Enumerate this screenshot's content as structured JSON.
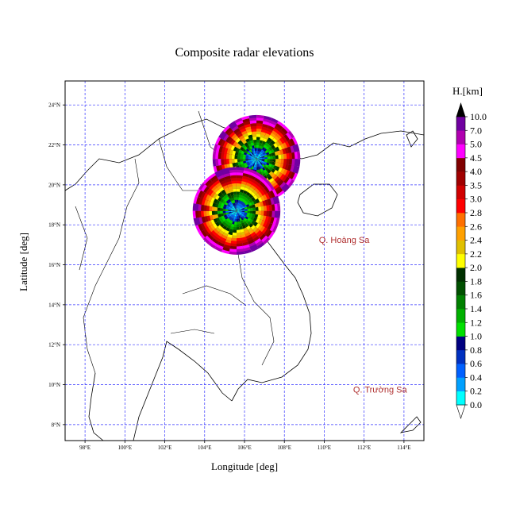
{
  "title": "Composite radar elevations",
  "xlabel": "Longitude [deg]",
  "ylabel": "Latitude [deg]",
  "chart_data": {
    "type": "heatmap",
    "title": "Composite radar elevations",
    "xlabel": "Longitude [deg]",
    "ylabel": "Latitude [deg]",
    "xlim": [
      97,
      115
    ],
    "ylim": [
      7.2,
      25.2
    ],
    "xticks": [
      98,
      100,
      102,
      104,
      106,
      108,
      110,
      112,
      114
    ],
    "yticks": [
      8,
      10,
      12,
      14,
      16,
      18,
      20,
      22,
      24
    ],
    "xtick_labels": [
      "98°E",
      "100°E",
      "102°E",
      "104°E",
      "106°E",
      "108°E",
      "110°E",
      "112°E",
      "114°E"
    ],
    "ytick_labels": [
      "8°N",
      "10°N",
      "12°N",
      "14°N",
      "16°N",
      "18°N",
      "20°N",
      "22°N",
      "24°N"
    ],
    "grid": true,
    "grid_color": "#3333ff",
    "radars": [
      {
        "lon": 106.6,
        "lat": 21.3,
        "range_deg": 2.2
      },
      {
        "lon": 105.6,
        "lat": 18.7,
        "range_deg": 2.2
      }
    ],
    "annotations": [
      {
        "text": "Q. Hoàng Sa",
        "lon": 111.0,
        "lat": 17.1
      },
      {
        "text": "Q. Trường Sa",
        "lon": 112.8,
        "lat": 9.6
      }
    ],
    "colorbar": {
      "title": "H.[km]",
      "levels": [
        0.0,
        0.2,
        0.4,
        0.6,
        0.8,
        1.0,
        1.2,
        1.4,
        1.6,
        1.8,
        2.0,
        2.2,
        2.4,
        2.6,
        2.8,
        3.0,
        3.5,
        4.0,
        4.5,
        5.0,
        7.0,
        10.0
      ],
      "labels": [
        "0.0",
        "0.2",
        "0.4",
        "0.6",
        "0.8",
        "1.0",
        "1.2",
        "1.4",
        "1.6",
        "1.8",
        "2.0",
        "2.2",
        "2.4",
        "2.6",
        "2.8",
        "3.0",
        "3.5",
        "4.0",
        "4.5",
        "5.0",
        "7.0",
        "10.0"
      ],
      "colors": [
        "#00ffff",
        "#00a0ff",
        "#0060ff",
        "#0030c0",
        "#000080",
        "#00e000",
        "#00b000",
        "#008000",
        "#005000",
        "#003000",
        "#ffff00",
        "#e0c000",
        "#ffa000",
        "#ff7000",
        "#ff0000",
        "#d00000",
        "#a00000",
        "#800000",
        "#ff00ff",
        "#b000b0",
        "#7000a0"
      ],
      "under_color": "#ffffff",
      "over_color": "#000000"
    }
  }
}
